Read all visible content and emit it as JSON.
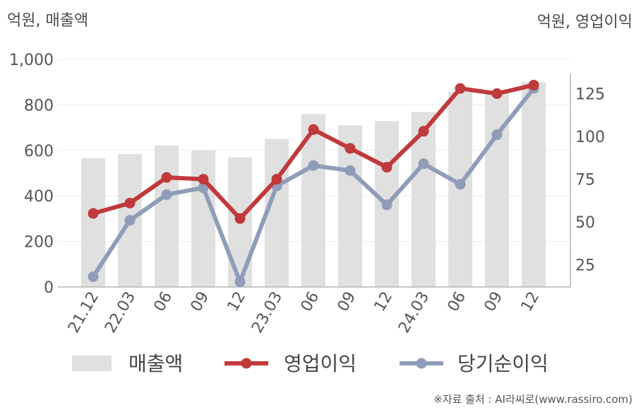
{
  "chart_data": {
    "type": "bar",
    "left_axis_label": "억원, 매출액",
    "right_axis_label": "억원, 영업이익",
    "categories": [
      "21.12",
      "22.03",
      "06",
      "09",
      "12",
      "23.03",
      "06",
      "09",
      "12",
      "24.03",
      "06",
      "09",
      "12"
    ],
    "left_ylim": [
      0,
      1000
    ],
    "left_ticks": [
      0,
      200,
      400,
      600,
      800,
      1000
    ],
    "left_tick_labels": [
      "0",
      "200",
      "400",
      "600",
      "800",
      "1,000"
    ],
    "right_ylim": [
      12,
      145
    ],
    "right_ticks": [
      25,
      50,
      75,
      100,
      125
    ],
    "right_tick_labels": [
      "25",
      "50",
      "75",
      "100",
      "125"
    ],
    "grid": true,
    "legend_position": "bottom",
    "series": [
      {
        "name": "매출액",
        "kind": "bar",
        "axis": "left",
        "color": "#e0e0e0",
        "values": [
          566,
          584,
          622,
          601,
          569,
          651,
          760,
          710,
          729,
          769,
          858,
          862,
          900
        ]
      },
      {
        "name": "영업이익",
        "kind": "line",
        "axis": "right",
        "color": "#c0393b",
        "values": [
          55,
          61,
          76,
          75,
          52,
          75,
          104,
          93,
          82,
          103,
          128,
          125,
          130
        ]
      },
      {
        "name": "당기순이익",
        "kind": "line",
        "axis": "right",
        "color": "#8f9db8",
        "values": [
          18,
          51,
          66,
          70,
          15,
          71,
          83,
          80,
          60,
          84,
          72,
          101,
          128
        ]
      }
    ]
  },
  "footer": {
    "source": "※자료 출처 : AI라씨로(www.rassiro.com)"
  }
}
